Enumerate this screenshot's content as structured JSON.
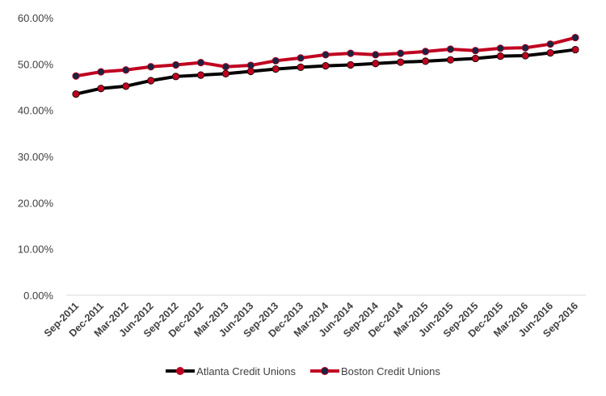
{
  "chart_data": {
    "type": "line",
    "title": "",
    "xlabel": "",
    "ylabel": "",
    "ylim": [
      0,
      60
    ],
    "y_ticks": [
      "0.00%",
      "10.00%",
      "20.00%",
      "30.00%",
      "40.00%",
      "50.00%",
      "60.00%"
    ],
    "y_tick_values": [
      0,
      10,
      20,
      30,
      40,
      50,
      60
    ],
    "grid": false,
    "legend_position": "bottom",
    "categories": [
      "Sep-2011",
      "Dec-2011",
      "Mar-2012",
      "Jun-2012",
      "Sep-2012",
      "Dec-2012",
      "Mar-2013",
      "Jun-2013",
      "Sep-2013",
      "Dec-2013",
      "Mar-2014",
      "Jun-2014",
      "Sep-2014",
      "Dec-2014",
      "Mar-2015",
      "Jun-2015",
      "Sep-2015",
      "Dec-2015",
      "Mar-2016",
      "Jun-2016",
      "Sep-2016"
    ],
    "series": [
      {
        "name": "Atlanta Credit Unions",
        "line_color": "#000000",
        "marker_color": "#c00020",
        "values": [
          43.5,
          44.7,
          45.2,
          46.4,
          47.3,
          47.6,
          47.9,
          48.4,
          48.9,
          49.3,
          49.6,
          49.8,
          50.1,
          50.4,
          50.6,
          50.9,
          51.2,
          51.7,
          51.8,
          52.4,
          53.1
        ]
      },
      {
        "name": "Boston Credit Unions",
        "line_color": "#c00020",
        "marker_color": "#1c2340",
        "values": [
          47.4,
          48.3,
          48.7,
          49.4,
          49.8,
          50.3,
          49.4,
          49.7,
          50.7,
          51.3,
          52.0,
          52.3,
          52.0,
          52.3,
          52.7,
          53.2,
          52.9,
          53.4,
          53.5,
          54.3,
          55.7
        ]
      }
    ]
  }
}
